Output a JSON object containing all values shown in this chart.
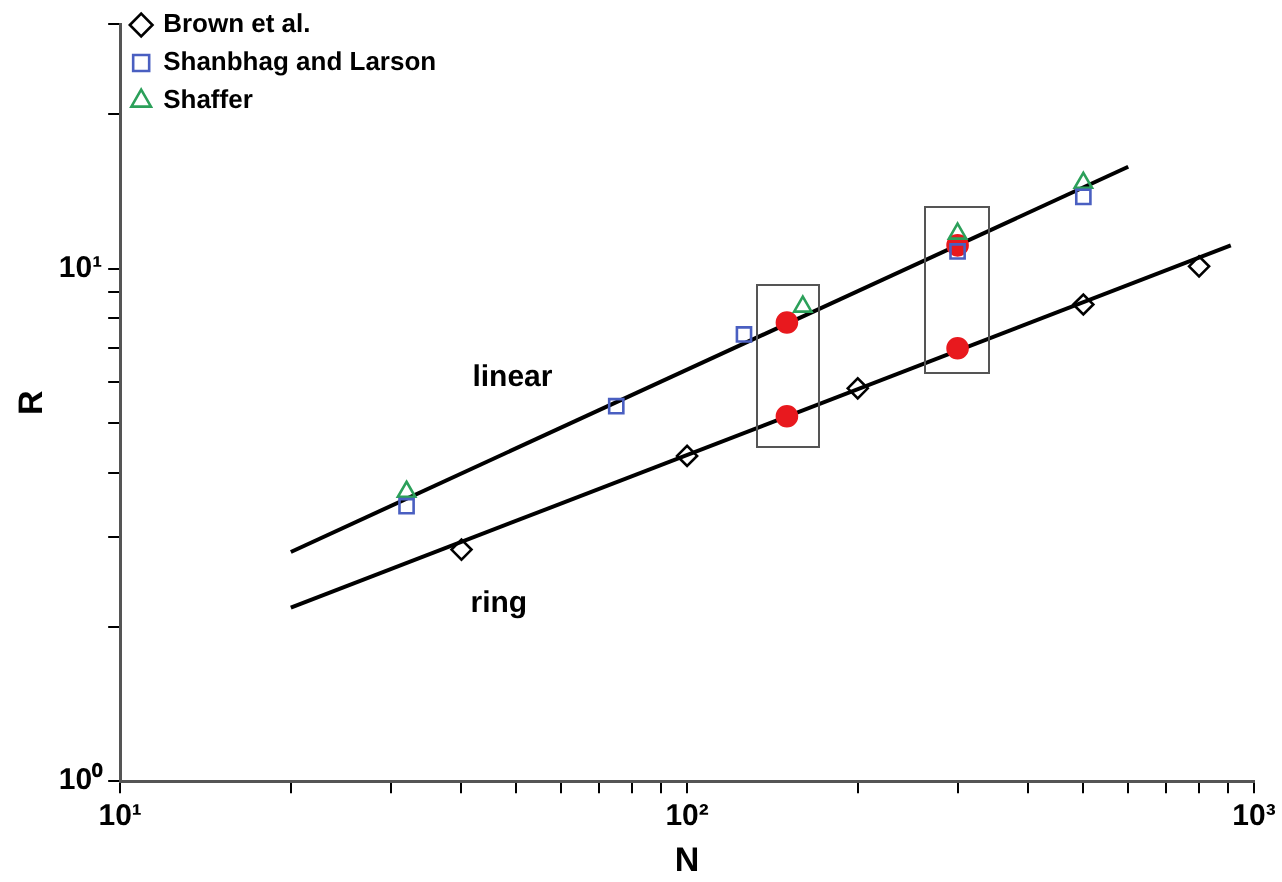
{
  "chart_data": {
    "type": "scatter",
    "xlabel": "N",
    "ylabel": "R",
    "log": "xy",
    "grid": false,
    "legend": "top left",
    "xlim": [
      10,
      1000
    ],
    "ylim": [
      1,
      30
    ],
    "xticks": [
      {
        "value": 10,
        "label": "10¹"
      },
      {
        "value": 20,
        "label": null
      },
      {
        "value": 30,
        "label": null
      },
      {
        "value": 40,
        "label": null
      },
      {
        "value": 50,
        "label": null
      },
      {
        "value": 60,
        "label": null
      },
      {
        "value": 70,
        "label": null
      },
      {
        "value": 80,
        "label": null
      },
      {
        "value": 90,
        "label": null
      },
      {
        "value": 100,
        "label": "10²"
      },
      {
        "value": 200,
        "label": null
      },
      {
        "value": 300,
        "label": null
      },
      {
        "value": 400,
        "label": null
      },
      {
        "value": 500,
        "label": null
      },
      {
        "value": 600,
        "label": null
      },
      {
        "value": 700,
        "label": null
      },
      {
        "value": 800,
        "label": null
      },
      {
        "value": 900,
        "label": null
      },
      {
        "value": 1000,
        "label": "10³"
      }
    ],
    "yticks": [
      {
        "value": 1,
        "label": "10⁰"
      },
      {
        "value": 2,
        "label": null
      },
      {
        "value": 3,
        "label": null
      },
      {
        "value": 4,
        "label": null
      },
      {
        "value": 5,
        "label": null
      },
      {
        "value": 6,
        "label": null
      },
      {
        "value": 7,
        "label": null
      },
      {
        "value": 8,
        "label": null
      },
      {
        "value": 9,
        "label": null
      },
      {
        "value": 10,
        "label": "10¹"
      },
      {
        "value": 20,
        "label": null
      },
      {
        "value": 30,
        "label": null
      }
    ],
    "series": [
      {
        "name": "Brown et al.",
        "marker": "diamond",
        "color": "#000000",
        "x": [
          40,
          100,
          200,
          500,
          800
        ],
        "values": [
          2.83,
          4.31,
          5.84,
          8.51,
          10.1
        ]
      },
      {
        "name": "Shanbhag and Larson",
        "marker": "square",
        "color": "#4a5fc1",
        "x": [
          32,
          75,
          126,
          300,
          500
        ],
        "values": [
          3.44,
          5.39,
          7.44,
          10.8,
          13.8
        ]
      },
      {
        "name": "Shaffer",
        "marker": "triangle",
        "color": "#2ca05a",
        "x": [
          32,
          160,
          300,
          500
        ],
        "values": [
          3.67,
          8.43,
          11.7,
          14.7
        ]
      },
      {
        "marker": "circle",
        "color": "#e8191e",
        "x": [
          150,
          150,
          300,
          300
        ],
        "values": [
          7.85,
          5.15,
          11.1,
          6.99
        ]
      },
      {
        "type": "line",
        "marker": "none",
        "color": "#000000",
        "x": [
          20,
          600
        ],
        "values": [
          2.8,
          15.8
        ]
      },
      {
        "type": "line",
        "marker": "none",
        "color": "#000000",
        "x": [
          20,
          910
        ],
        "values": [
          2.18,
          11.1
        ]
      }
    ],
    "annotations": [
      "linear",
      "ring"
    ]
  }
}
